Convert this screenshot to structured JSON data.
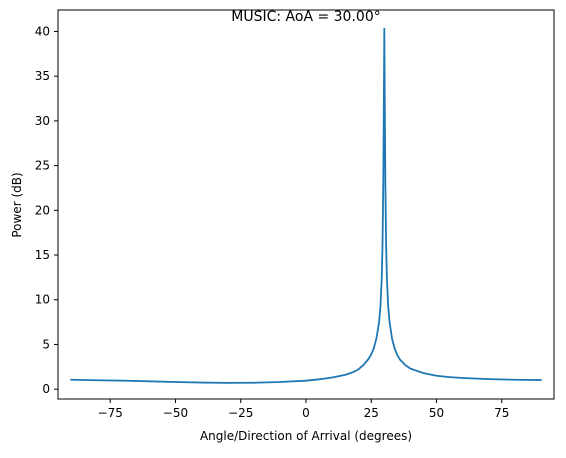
{
  "chart_data": {
    "type": "line",
    "title": "MUSIC: AoA = 30.00$^\\circ$",
    "title_display": "MUSIC: AoA = 30.00°",
    "xlabel": "Angle/Direction of Arrival (degrees)",
    "ylabel": "Power (dB)",
    "xlim": [
      -95,
      95
    ],
    "ylim": [
      -1.1,
      42.4
    ],
    "x_ticks": [
      -75,
      -50,
      -25,
      0,
      25,
      50,
      75
    ],
    "x_tick_labels": [
      "−75",
      "−50",
      "−25",
      "0",
      "25",
      "50",
      "75"
    ],
    "y_ticks": [
      0,
      5,
      10,
      15,
      20,
      25,
      30,
      35,
      40
    ],
    "y_tick_labels": [
      "0",
      "5",
      "10",
      "15",
      "20",
      "25",
      "30",
      "35",
      "40"
    ],
    "grid": false,
    "line_color": "#1f77b4",
    "series": [
      {
        "x": [
          -90,
          -80,
          -70,
          -60,
          -50,
          -40,
          -30,
          -20,
          -10,
          0,
          5,
          10,
          15,
          18,
          20,
          22,
          24,
          25,
          26,
          27,
          28,
          28.5,
          29,
          29.3,
          29.6,
          29.8,
          30,
          30.2,
          30.4,
          30.7,
          31,
          31.5,
          32,
          33,
          34,
          35,
          36,
          38,
          40,
          45,
          50,
          55,
          60,
          70,
          80,
          90
        ],
        "y": [
          1.05,
          1.0,
          0.95,
          0.88,
          0.8,
          0.74,
          0.7,
          0.72,
          0.8,
          0.95,
          1.1,
          1.3,
          1.6,
          1.9,
          2.2,
          2.7,
          3.4,
          3.9,
          4.6,
          5.7,
          7.5,
          9.2,
          12.3,
          16.0,
          23.0,
          31.0,
          40.3,
          31.0,
          23.0,
          16.0,
          12.3,
          9.2,
          7.5,
          5.6,
          4.5,
          3.8,
          3.3,
          2.7,
          2.3,
          1.8,
          1.5,
          1.35,
          1.25,
          1.12,
          1.05,
          1.02
        ]
      }
    ]
  }
}
